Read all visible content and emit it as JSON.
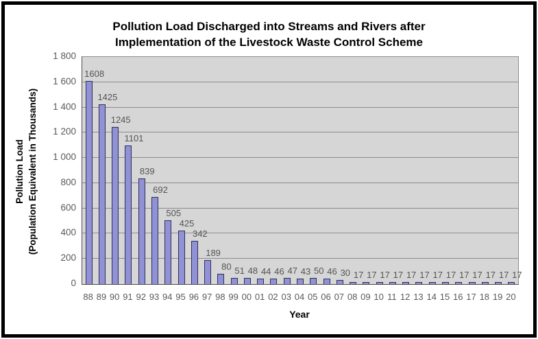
{
  "chart_data": {
    "type": "bar",
    "title_lines": [
      "Pollution Load Discharged into Streams and Rivers after",
      "Implementation of the Livestock Waste Control Scheme"
    ],
    "xlabel": "Year",
    "ylabel_lines": [
      "Pollution Load",
      "(Population Equivalent in Thousands)"
    ],
    "categories": [
      "88",
      "89",
      "90",
      "91",
      "92",
      "93",
      "94",
      "95",
      "96",
      "97",
      "98",
      "99",
      "00",
      "01",
      "02",
      "03",
      "04",
      "05",
      "06",
      "07",
      "08",
      "09",
      "10",
      "11",
      "12",
      "13",
      "14",
      "15",
      "16",
      "17",
      "18",
      "19",
      "20"
    ],
    "values": [
      1608,
      1425,
      1245,
      1101,
      839,
      692,
      505,
      425,
      342,
      189,
      80,
      51,
      48,
      44,
      46,
      47,
      43,
      50,
      46,
      30,
      17,
      17,
      17,
      17,
      17,
      17,
      17,
      17,
      17,
      17,
      17,
      17,
      17
    ],
    "ylim": [
      0,
      1800
    ],
    "ytick_step": 200,
    "ytick_labels": [
      "0",
      "200",
      "400",
      "600",
      "800",
      "1 000",
      "1 200",
      "1 400",
      "1 600",
      "1 800"
    ],
    "grid": true,
    "legend": "none",
    "colors": {
      "bar_fill": "#9191D6",
      "bar_border": "#2E2E54",
      "plot_background": "#D6D6D6",
      "gridline": "#8C8C8C",
      "axis_line": "#4D4D4D",
      "tick_label": "#595959",
      "data_label": "#545454",
      "title": "#000000",
      "frame_border": "#000000"
    }
  }
}
